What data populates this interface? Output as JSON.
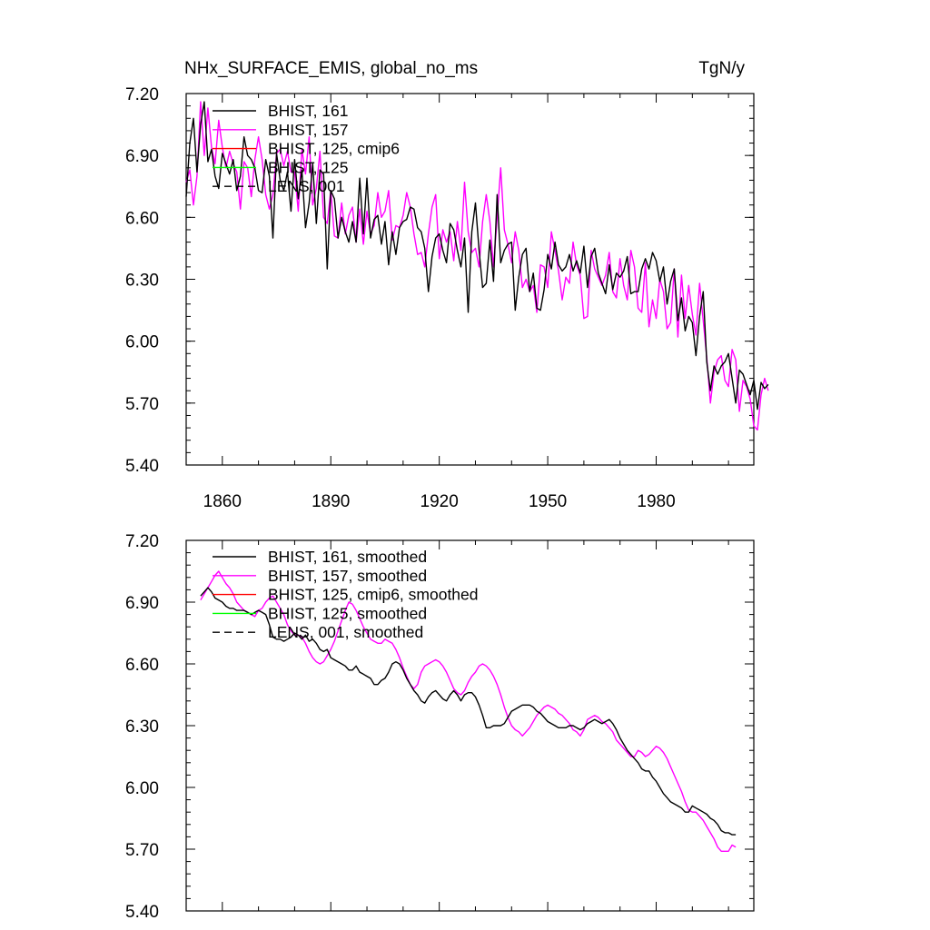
{
  "figure": {
    "title_left": "NHx_SURFACE_EMIS, global_no_ms",
    "title_right": "TgN/y"
  },
  "chart_data": [
    {
      "type": "line",
      "x_start": 1850,
      "x_end": 2005,
      "xlim": [
        1850,
        2007
      ],
      "ylim": [
        5.4,
        7.2
      ],
      "yticks": [
        "7.20",
        "6.90",
        "6.60",
        "6.30",
        "6.00",
        "5.70",
        "5.40"
      ],
      "xticks": [
        "1860",
        "1890",
        "1920",
        "1950",
        "1980"
      ],
      "legend_position": "top-left",
      "series": [
        {
          "name": "BHIST, 161",
          "color": "#000000",
          "dash": "solid",
          "values": [
            6.7,
            6.96,
            7.08,
            6.82,
            7.05,
            7.16,
            6.87,
            6.93,
            6.8,
            6.74,
            6.91,
            6.86,
            6.81,
            6.88,
            6.73,
            6.8,
            6.99,
            6.9,
            6.88,
            6.84,
            6.73,
            6.72,
            6.88,
            6.8,
            6.5,
            6.91,
            6.78,
            6.73,
            6.82,
            6.63,
            6.88,
            6.69,
            6.83,
            6.55,
            6.67,
            6.86,
            6.57,
            6.83,
            6.81,
            6.35,
            6.73,
            6.69,
            6.5,
            6.6,
            6.53,
            6.48,
            6.58,
            6.48,
            6.79,
            6.52,
            6.79,
            6.5,
            6.59,
            6.61,
            6.47,
            6.58,
            6.37,
            6.53,
            6.42,
            6.55,
            6.58,
            6.59,
            6.65,
            6.64,
            6.55,
            6.53,
            6.45,
            6.24,
            6.41,
            6.5,
            6.52,
            6.44,
            6.38,
            6.57,
            6.54,
            6.44,
            6.36,
            6.5,
            6.14,
            6.53,
            6.67,
            6.44,
            6.26,
            6.28,
            6.49,
            6.29,
            6.71,
            6.38,
            6.44,
            6.47,
            6.48,
            6.15,
            6.31,
            6.42,
            6.45,
            6.24,
            6.33,
            6.16,
            6.15,
            6.25,
            6.42,
            6.35,
            6.48,
            6.37,
            6.34,
            6.36,
            6.42,
            6.34,
            6.39,
            6.33,
            6.46,
            6.26,
            6.41,
            6.45,
            6.33,
            6.28,
            6.23,
            6.37,
            6.25,
            6.33,
            6.31,
            6.34,
            6.41,
            6.23,
            6.24,
            6.24,
            6.35,
            6.4,
            6.35,
            6.43,
            6.39,
            6.29,
            6.36,
            6.18,
            6.29,
            6.35,
            6.1,
            6.21,
            6.05,
            6.12,
            6.09,
            5.93,
            6.12,
            6.24,
            5.9,
            5.76,
            5.88,
            5.84,
            5.88,
            5.9,
            5.94,
            5.82,
            5.7,
            5.86,
            5.84,
            5.79,
            5.74,
            5.81,
            5.67,
            5.8,
            5.77,
            5.79
          ]
        },
        {
          "name": "BHIST, 157",
          "color": "#ff00ff",
          "dash": "solid",
          "values": [
            6.77,
            6.83,
            6.66,
            6.8,
            7.16,
            6.9,
            7.13,
            6.94,
            6.86,
            7.07,
            6.94,
            6.84,
            6.92,
            6.86,
            6.82,
            6.64,
            6.87,
            6.84,
            6.7,
            6.88,
            6.99,
            6.88,
            6.71,
            6.64,
            6.71,
            6.91,
            6.93,
            6.85,
            6.92,
            6.82,
            6.82,
            6.63,
            6.93,
            6.81,
            6.99,
            6.66,
            6.74,
            6.92,
            6.6,
            6.57,
            6.73,
            6.51,
            6.5,
            6.67,
            6.52,
            6.61,
            6.65,
            6.48,
            6.64,
            6.47,
            6.63,
            6.52,
            6.56,
            6.72,
            6.6,
            6.63,
            6.73,
            6.49,
            6.56,
            6.55,
            6.61,
            6.72,
            6.65,
            6.52,
            6.42,
            6.43,
            6.36,
            6.52,
            6.65,
            6.71,
            6.4,
            6.54,
            6.48,
            6.53,
            6.39,
            6.58,
            6.44,
            6.77,
            6.53,
            6.43,
            6.45,
            6.36,
            6.58,
            6.71,
            6.58,
            6.36,
            6.6,
            6.84,
            6.54,
            6.47,
            6.38,
            6.53,
            6.44,
            6.26,
            6.3,
            6.24,
            6.27,
            6.14,
            6.37,
            6.36,
            6.26,
            6.53,
            6.44,
            6.34,
            6.2,
            6.31,
            6.28,
            6.48,
            6.37,
            6.32,
            6.11,
            6.12,
            6.44,
            6.35,
            6.31,
            6.27,
            6.32,
            6.43,
            6.24,
            6.21,
            6.4,
            6.27,
            6.2,
            6.44,
            6.36,
            6.16,
            6.14,
            6.38,
            6.07,
            6.2,
            6.11,
            6.3,
            6.24,
            6.06,
            6.09,
            6.35,
            6.02,
            6.32,
            6.11,
            6.27,
            6.13,
            6.03,
            6.28,
            6.1,
            5.92,
            5.7,
            5.85,
            5.91,
            5.93,
            5.81,
            5.78,
            5.96,
            5.91,
            5.66,
            5.81,
            5.78,
            5.72,
            5.59,
            5.57,
            5.74,
            5.82,
            5.76
          ]
        },
        {
          "name": "BHIST, 125, cmip6",
          "color": "#ff0000",
          "dash": "solid",
          "values": []
        },
        {
          "name": "BHIST, 125",
          "color": "#00ff00",
          "dash": "solid",
          "values": []
        },
        {
          "name": "LENS, 001",
          "color": "#000000",
          "dash": "dashed",
          "values": []
        }
      ]
    },
    {
      "type": "line",
      "x_start": 1854,
      "x_end": 2002,
      "xlim": [
        1850,
        2007
      ],
      "ylim": [
        5.4,
        7.2
      ],
      "yticks": [
        "7.20",
        "6.90",
        "6.60",
        "6.30",
        "6.00",
        "5.70",
        "5.40"
      ],
      "xticks": [],
      "legend_position": "top-left",
      "series": [
        {
          "name": "BHIST, 161, smoothed",
          "color": "#000000",
          "dash": "solid",
          "values": [
            6.93,
            6.95,
            6.97,
            6.95,
            6.92,
            6.91,
            6.9,
            6.88,
            6.87,
            6.87,
            6.86,
            6.86,
            6.86,
            6.85,
            6.84,
            6.85,
            6.86,
            6.85,
            6.84,
            6.79,
            6.73,
            6.72,
            6.72,
            6.71,
            6.72,
            6.73,
            6.75,
            6.74,
            6.72,
            6.74,
            6.71,
            6.72,
            6.7,
            6.67,
            6.66,
            6.67,
            6.63,
            6.62,
            6.61,
            6.6,
            6.59,
            6.57,
            6.57,
            6.59,
            6.56,
            6.55,
            6.54,
            6.53,
            6.5,
            6.5,
            6.52,
            6.53,
            6.56,
            6.6,
            6.61,
            6.6,
            6.57,
            6.53,
            6.5,
            6.47,
            6.45,
            6.42,
            6.41,
            6.44,
            6.46,
            6.47,
            6.45,
            6.43,
            6.42,
            6.45,
            6.47,
            6.45,
            6.42,
            6.45,
            6.46,
            6.46,
            6.44,
            6.4,
            6.35,
            6.29,
            6.29,
            6.3,
            6.3,
            6.3,
            6.31,
            6.34,
            6.37,
            6.38,
            6.39,
            6.4,
            6.4,
            6.4,
            6.39,
            6.37,
            6.36,
            6.34,
            6.32,
            6.31,
            6.3,
            6.29,
            6.29,
            6.29,
            6.3,
            6.3,
            6.29,
            6.28,
            6.29,
            6.31,
            6.32,
            6.33,
            6.32,
            6.31,
            6.32,
            6.33,
            6.31,
            6.28,
            6.24,
            6.21,
            6.18,
            6.16,
            6.14,
            6.12,
            6.09,
            6.08,
            6.08,
            6.05,
            6.03,
            6.0,
            5.97,
            5.95,
            5.93,
            5.92,
            5.91,
            5.9,
            5.88,
            5.88,
            5.91,
            5.9,
            5.89,
            5.88,
            5.87,
            5.85,
            5.84,
            5.82,
            5.79,
            5.78,
            5.78,
            5.77,
            5.77
          ]
        },
        {
          "name": "BHIST, 157, smoothed",
          "color": "#ff00ff",
          "dash": "solid",
          "values": [
            6.91,
            6.94,
            6.97,
            7.0,
            7.03,
            7.05,
            7.02,
            6.99,
            6.97,
            6.94,
            6.9,
            6.88,
            6.86,
            6.85,
            6.84,
            6.83,
            6.86,
            6.87,
            6.9,
            6.92,
            6.93,
            6.9,
            6.87,
            6.84,
            6.79,
            6.76,
            6.74,
            6.74,
            6.73,
            6.7,
            6.66,
            6.63,
            6.61,
            6.6,
            6.61,
            6.64,
            6.67,
            6.71,
            6.76,
            6.81,
            6.86,
            6.9,
            6.89,
            6.86,
            6.82,
            6.78,
            6.75,
            6.72,
            6.71,
            6.7,
            6.7,
            6.72,
            6.71,
            6.7,
            6.67,
            6.63,
            6.58,
            6.54,
            6.5,
            6.48,
            6.5,
            6.56,
            6.59,
            6.6,
            6.61,
            6.62,
            6.61,
            6.59,
            6.56,
            6.52,
            6.48,
            6.46,
            6.45,
            6.47,
            6.51,
            6.54,
            6.56,
            6.59,
            6.6,
            6.59,
            6.57,
            6.54,
            6.5,
            6.45,
            6.39,
            6.34,
            6.3,
            6.28,
            6.27,
            6.25,
            6.27,
            6.29,
            6.32,
            6.35,
            6.37,
            6.39,
            6.4,
            6.39,
            6.38,
            6.36,
            6.35,
            6.33,
            6.31,
            6.28,
            6.27,
            6.25,
            6.28,
            6.33,
            6.34,
            6.35,
            6.34,
            6.32,
            6.31,
            6.29,
            6.27,
            6.23,
            6.21,
            6.19,
            6.17,
            6.15,
            6.15,
            6.18,
            6.17,
            6.15,
            6.16,
            6.18,
            6.2,
            6.19,
            6.17,
            6.14,
            6.1,
            6.06,
            6.02,
            5.98,
            5.93,
            5.89,
            5.88,
            5.88,
            5.86,
            5.84,
            5.81,
            5.78,
            5.75,
            5.71,
            5.69,
            5.69,
            5.69,
            5.72,
            5.71
          ]
        },
        {
          "name": "BHIST, 125, cmip6, smoothed",
          "color": "#ff0000",
          "dash": "solid",
          "values": []
        },
        {
          "name": "BHIST, 125, smoothed",
          "color": "#00ff00",
          "dash": "solid",
          "values": []
        },
        {
          "name": "LENS, 001, smoothed",
          "color": "#000000",
          "dash": "dashed",
          "values": []
        }
      ]
    }
  ]
}
